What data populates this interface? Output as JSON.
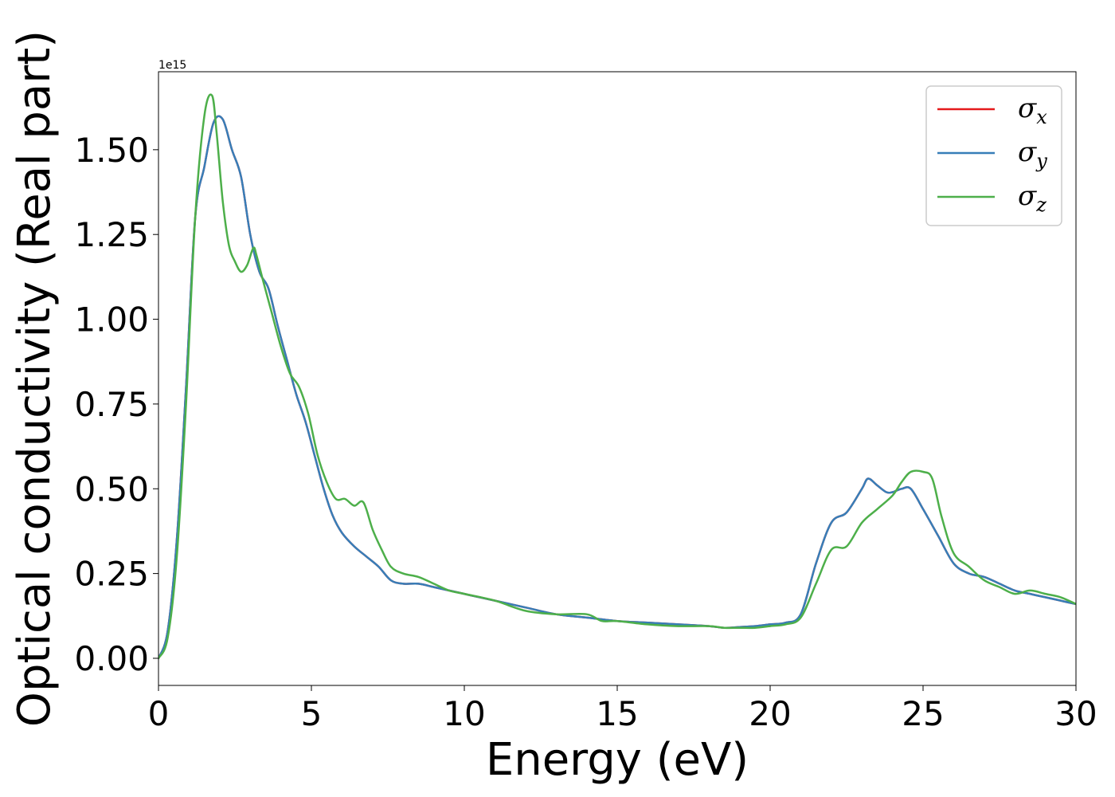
{
  "chart_data": {
    "type": "line",
    "title": "",
    "xlabel": "Energy (eV)",
    "ylabel": "Optical conductivity (Real part)",
    "y_offset_text": "1e15",
    "xlim": [
      0,
      30
    ],
    "ylim": [
      -0.08,
      1.73
    ],
    "xticks": [
      0,
      5,
      10,
      15,
      20,
      25,
      30
    ],
    "xtick_labels": [
      "0",
      "5",
      "10",
      "15",
      "20",
      "25",
      "30"
    ],
    "yticks": [
      0.0,
      0.25,
      0.5,
      0.75,
      1.0,
      1.25,
      1.5
    ],
    "ytick_labels": [
      "0.00",
      "0.25",
      "0.50",
      "0.75",
      "1.00",
      "1.25",
      "1.50"
    ],
    "grid": false,
    "legend_position": "top-right",
    "series": [
      {
        "name": "σx",
        "symbol": "σ",
        "subscript": "x",
        "color": "#e41a1c",
        "x": [
          0,
          0.3,
          0.6,
          0.9,
          1.2,
          1.5,
          1.8,
          2.1,
          2.4,
          2.7,
          3.0,
          3.3,
          3.6,
          3.9,
          4.2,
          4.5,
          4.8,
          5.1,
          5.4,
          5.7,
          6.0,
          6.4,
          6.8,
          7.2,
          7.6,
          8.0,
          8.5,
          9.0,
          9.5,
          10.0,
          10.5,
          11.0,
          12.0,
          13.0,
          14.0,
          15.0,
          16.0,
          17.0,
          18.0,
          18.5,
          19.0,
          19.5,
          20.0,
          20.5,
          21.0,
          21.5,
          22.0,
          22.5,
          23.0,
          23.2,
          23.5,
          23.8,
          24.0,
          24.3,
          24.6,
          25.0,
          25.5,
          26.0,
          26.5,
          27.0,
          27.5,
          28.0,
          28.5,
          29.0,
          29.5,
          30.0
        ],
        "y": [
          0.0,
          0.08,
          0.35,
          0.8,
          1.3,
          1.45,
          1.58,
          1.59,
          1.5,
          1.42,
          1.25,
          1.14,
          1.09,
          0.98,
          0.88,
          0.78,
          0.7,
          0.6,
          0.5,
          0.42,
          0.37,
          0.33,
          0.3,
          0.27,
          0.23,
          0.22,
          0.22,
          0.21,
          0.2,
          0.19,
          0.18,
          0.17,
          0.15,
          0.13,
          0.12,
          0.11,
          0.105,
          0.1,
          0.095,
          0.09,
          0.092,
          0.095,
          0.1,
          0.105,
          0.13,
          0.28,
          0.4,
          0.43,
          0.5,
          0.53,
          0.51,
          0.49,
          0.49,
          0.5,
          0.5,
          0.44,
          0.36,
          0.28,
          0.25,
          0.24,
          0.22,
          0.2,
          0.19,
          0.18,
          0.17,
          0.16
        ]
      },
      {
        "name": "σy",
        "symbol": "σ",
        "subscript": "y",
        "color": "#377eb8",
        "x": [
          0,
          0.3,
          0.6,
          0.9,
          1.2,
          1.5,
          1.8,
          2.1,
          2.4,
          2.7,
          3.0,
          3.3,
          3.6,
          3.9,
          4.2,
          4.5,
          4.8,
          5.1,
          5.4,
          5.7,
          6.0,
          6.4,
          6.8,
          7.2,
          7.6,
          8.0,
          8.5,
          9.0,
          9.5,
          10.0,
          10.5,
          11.0,
          12.0,
          13.0,
          14.0,
          15.0,
          16.0,
          17.0,
          18.0,
          18.5,
          19.0,
          19.5,
          20.0,
          20.5,
          21.0,
          21.5,
          22.0,
          22.5,
          23.0,
          23.2,
          23.5,
          23.8,
          24.0,
          24.3,
          24.6,
          25.0,
          25.5,
          26.0,
          26.5,
          27.0,
          27.5,
          28.0,
          28.5,
          29.0,
          29.5,
          30.0
        ],
        "y": [
          0.0,
          0.08,
          0.35,
          0.8,
          1.3,
          1.45,
          1.58,
          1.59,
          1.5,
          1.42,
          1.25,
          1.14,
          1.09,
          0.98,
          0.88,
          0.78,
          0.7,
          0.6,
          0.5,
          0.42,
          0.37,
          0.33,
          0.3,
          0.27,
          0.23,
          0.22,
          0.22,
          0.21,
          0.2,
          0.19,
          0.18,
          0.17,
          0.15,
          0.13,
          0.12,
          0.11,
          0.105,
          0.1,
          0.095,
          0.09,
          0.092,
          0.095,
          0.1,
          0.105,
          0.13,
          0.28,
          0.4,
          0.43,
          0.5,
          0.53,
          0.51,
          0.49,
          0.49,
          0.5,
          0.5,
          0.44,
          0.36,
          0.28,
          0.25,
          0.24,
          0.22,
          0.2,
          0.19,
          0.18,
          0.17,
          0.16
        ]
      },
      {
        "name": "σz",
        "symbol": "σ",
        "subscript": "z",
        "color": "#4daf4a",
        "x": [
          0,
          0.3,
          0.6,
          0.9,
          1.2,
          1.5,
          1.75,
          1.9,
          2.1,
          2.3,
          2.5,
          2.7,
          2.9,
          3.1,
          3.2,
          3.4,
          3.7,
          4.0,
          4.3,
          4.6,
          4.9,
          5.2,
          5.5,
          5.8,
          6.1,
          6.4,
          6.7,
          7.0,
          7.3,
          7.6,
          8.0,
          8.5,
          9.0,
          9.5,
          10.0,
          11.0,
          12.0,
          13.0,
          14.0,
          14.5,
          15.0,
          16.0,
          17.0,
          18.0,
          18.5,
          19.0,
          19.5,
          20.0,
          20.5,
          21.0,
          21.5,
          22.0,
          22.5,
          23.0,
          23.5,
          24.0,
          24.3,
          24.6,
          25.0,
          25.3,
          25.6,
          26.0,
          26.5,
          27.0,
          27.5,
          28.0,
          28.5,
          29.0,
          29.5,
          30.0
        ],
        "y": [
          0.0,
          0.06,
          0.3,
          0.75,
          1.3,
          1.6,
          1.66,
          1.55,
          1.35,
          1.22,
          1.17,
          1.14,
          1.16,
          1.21,
          1.19,
          1.12,
          1.02,
          0.92,
          0.84,
          0.8,
          0.72,
          0.6,
          0.52,
          0.47,
          0.47,
          0.45,
          0.46,
          0.38,
          0.32,
          0.27,
          0.25,
          0.24,
          0.22,
          0.2,
          0.19,
          0.17,
          0.14,
          0.13,
          0.13,
          0.11,
          0.11,
          0.1,
          0.095,
          0.095,
          0.09,
          0.09,
          0.09,
          0.095,
          0.1,
          0.12,
          0.22,
          0.32,
          0.33,
          0.4,
          0.44,
          0.48,
          0.52,
          0.55,
          0.55,
          0.53,
          0.42,
          0.31,
          0.27,
          0.23,
          0.21,
          0.19,
          0.2,
          0.19,
          0.18,
          0.16
        ]
      }
    ]
  }
}
